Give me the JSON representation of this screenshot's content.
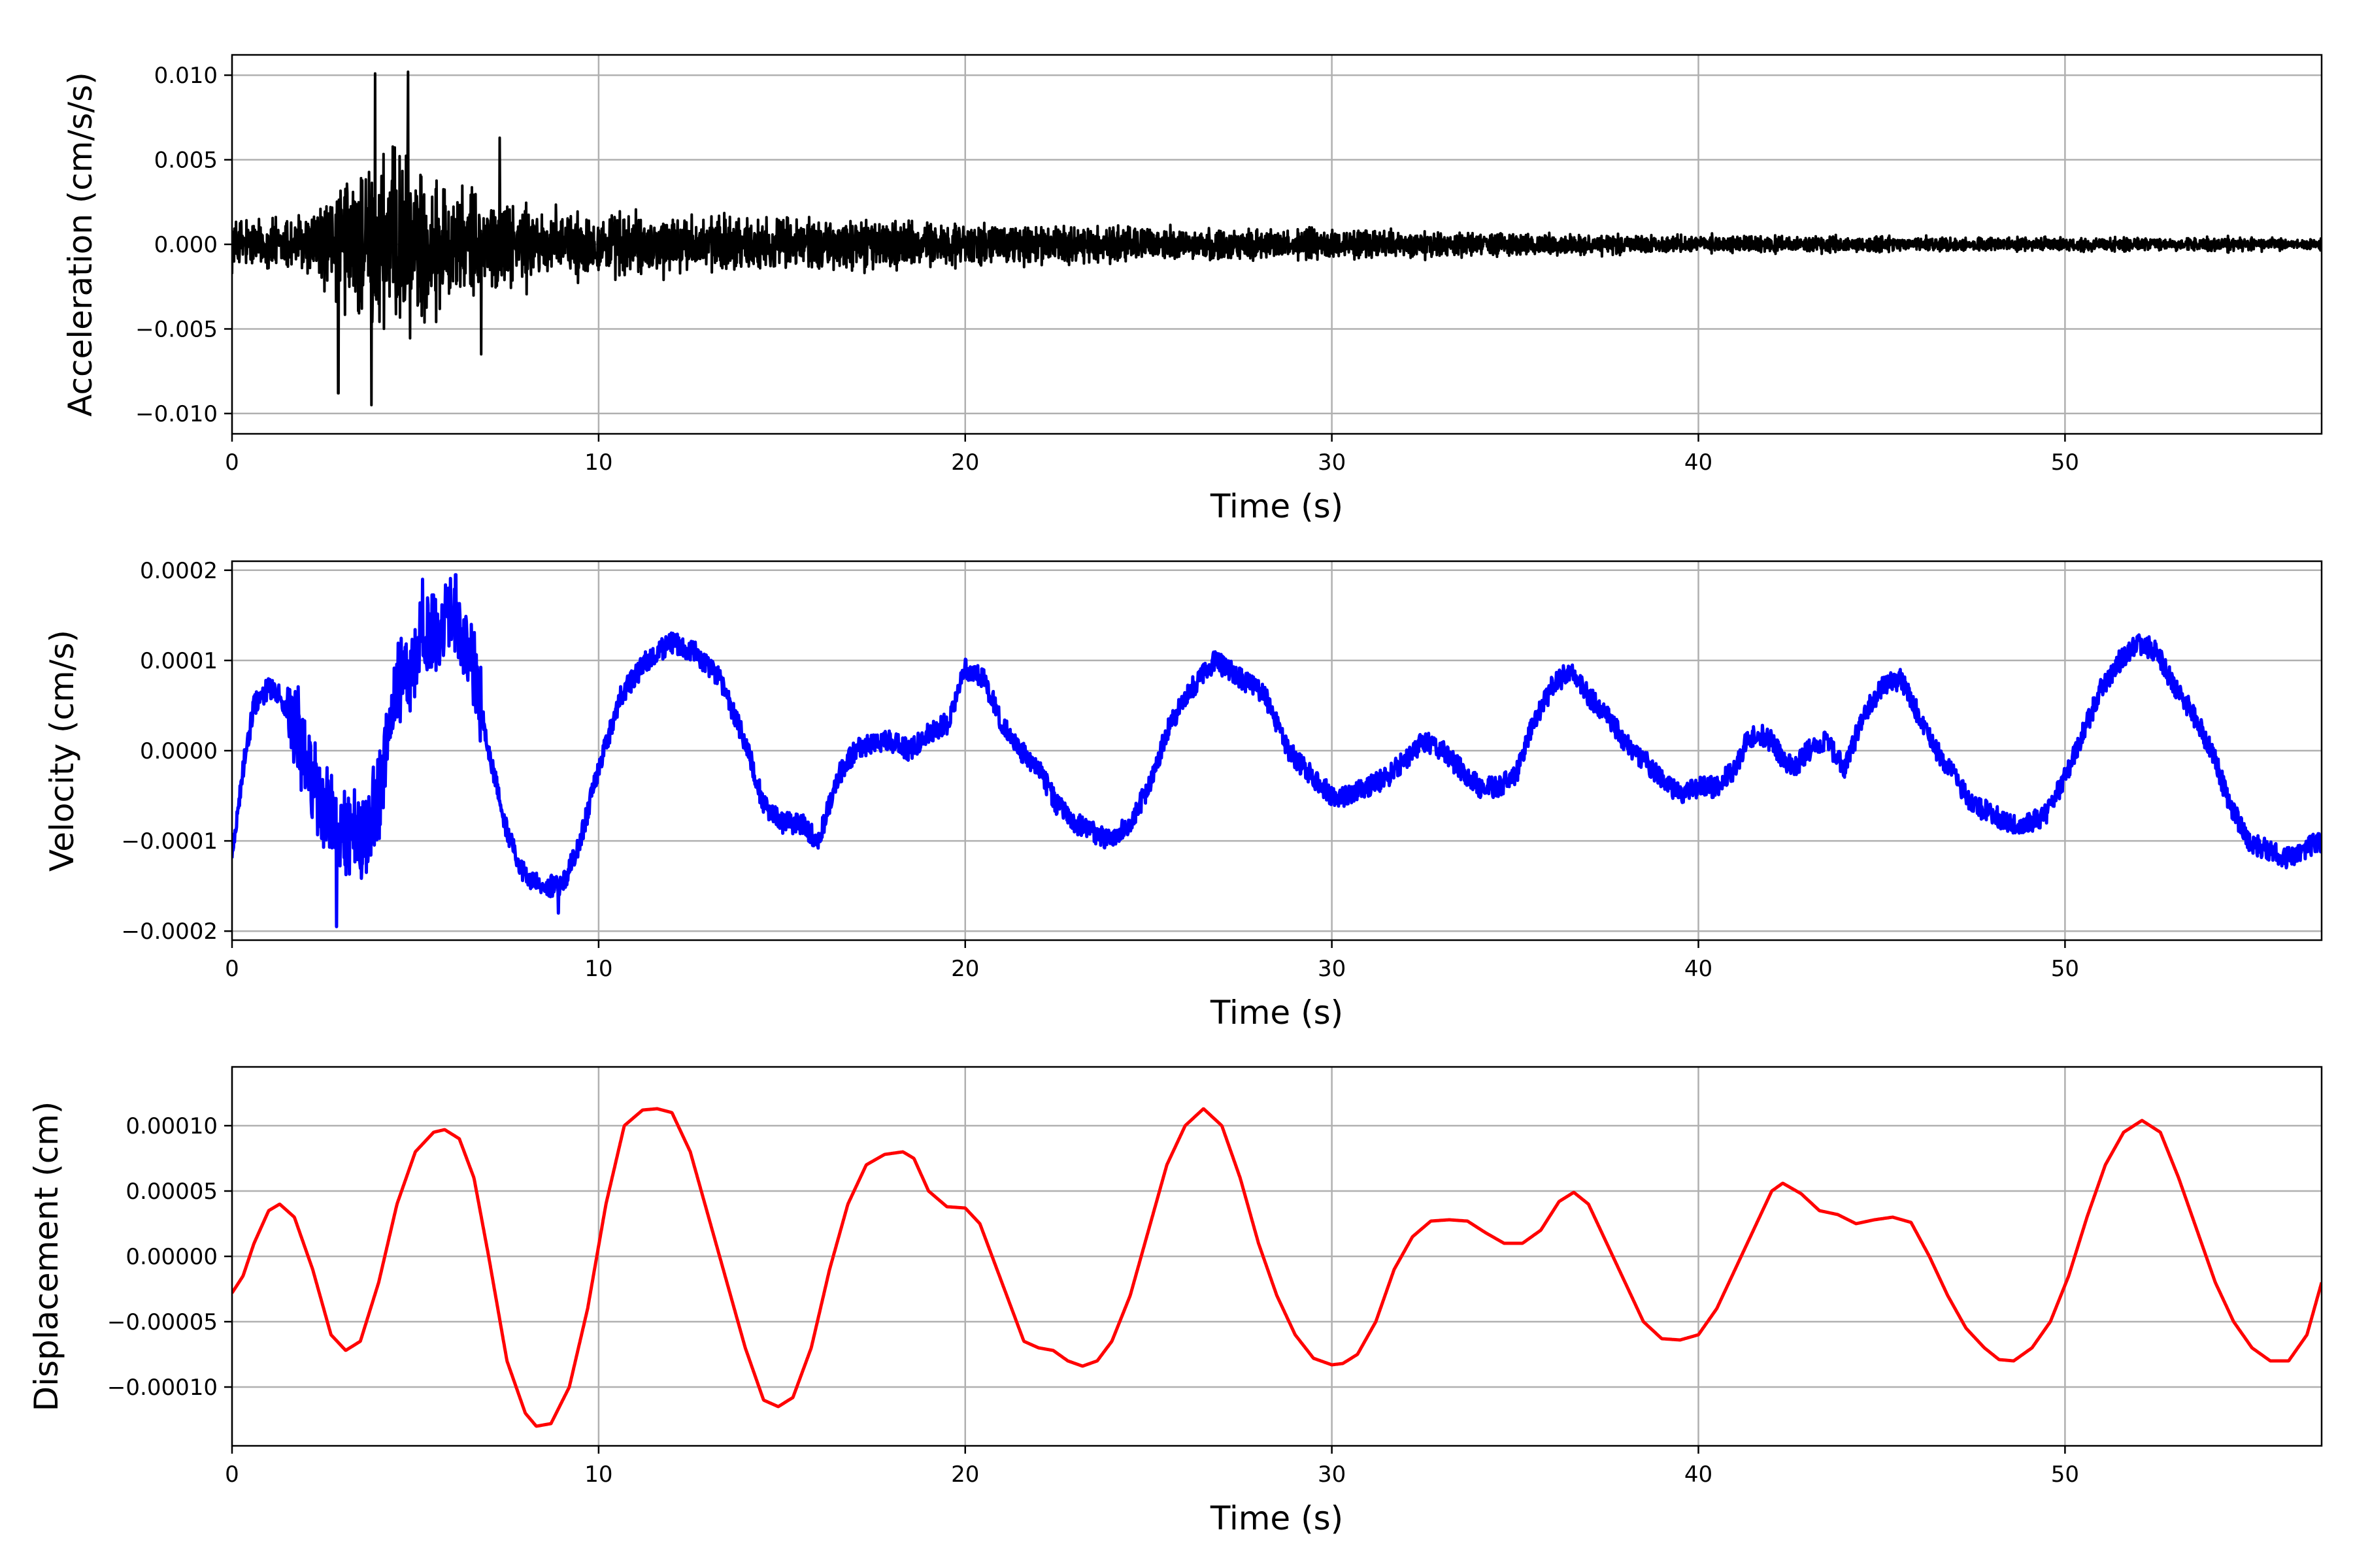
{
  "colors": {
    "grid": "#b0b0b0",
    "axes": "#000000",
    "background": "#ffffff"
  },
  "chart_data": [
    {
      "type": "line",
      "title": "",
      "xlabel": "Time (s)",
      "ylabel": "Acceleration (cm/s/s)",
      "xlim": [
        0,
        57
      ],
      "ylim": [
        -0.0112,
        0.0112
      ],
      "xticks": [
        0,
        10,
        20,
        30,
        40,
        50
      ],
      "xtick_labels": [
        "0",
        "10",
        "20",
        "30",
        "40",
        "50"
      ],
      "yticks": [
        -0.01,
        -0.005,
        0.0,
        0.005,
        0.01
      ],
      "ytick_labels": [
        "−0.010",
        "−0.005",
        "0.000",
        "0.005",
        "0.010"
      ],
      "grid": true,
      "series": [
        {
          "color": "#000000",
          "style": "noise",
          "envelope_x": [
            0,
            0.5,
            1.0,
            2.0,
            2.8,
            3.3,
            3.8,
            4.3,
            4.8,
            5.3,
            6.0,
            7.0,
            8.0,
            9.0,
            10.0,
            12.0,
            14.0,
            16.0,
            18.0,
            20.0,
            23.0,
            26.0,
            29.0,
            32.0,
            35.0,
            38.0,
            40.0,
            43.0,
            46.0,
            50.0,
            53.0,
            57.0
          ],
          "envelope": [
            0.003,
            0.0028,
            0.0027,
            0.0032,
            0.0055,
            0.0085,
            0.0095,
            0.0098,
            0.0092,
            0.0072,
            0.0058,
            0.0048,
            0.0045,
            0.0038,
            0.0035,
            0.0034,
            0.003,
            0.0028,
            0.0026,
            0.0023,
            0.002,
            0.0018,
            0.0016,
            0.0014,
            0.0012,
            0.001,
            0.0009,
            0.00085,
            0.0008,
            0.00072,
            0.0007,
            0.0007
          ],
          "peaks": [
            [
              3.9,
              0.0101
            ],
            [
              4.8,
              0.0102
            ],
            [
              3.8,
              -0.0095
            ],
            [
              2.9,
              -0.0088
            ],
            [
              7.3,
              0.0063
            ],
            [
              6.8,
              -0.0065
            ]
          ]
        }
      ]
    },
    {
      "type": "line",
      "title": "",
      "xlabel": "Time (s)",
      "ylabel": "Velocity (cm/s)",
      "xlim": [
        0,
        57
      ],
      "ylim": [
        -0.00021,
        0.00021
      ],
      "xticks": [
        0,
        10,
        20,
        30,
        40,
        50
      ],
      "xtick_labels": [
        "0",
        "10",
        "20",
        "30",
        "40",
        "50"
      ],
      "yticks": [
        -0.0002,
        -0.0001,
        0.0,
        0.0001,
        0.0002
      ],
      "ytick_labels": [
        "−0.0002",
        "−0.0001",
        "0.0000",
        "0.0001",
        "0.0002"
      ],
      "grid": true,
      "series": [
        {
          "color": "#0000ff",
          "style": "line",
          "x": [
            0,
            0.3,
            0.6,
            1.0,
            1.3,
            1.8,
            2.3,
            2.9,
            3.5,
            4.0,
            4.5,
            5.0,
            5.5,
            6.0,
            6.5,
            7.0,
            7.5,
            8.0,
            8.5,
            9.0,
            9.5,
            10.0,
            10.6,
            11.3,
            12.0,
            12.6,
            13.3,
            14.0,
            14.5,
            15.0,
            15.5,
            16.0,
            16.5,
            17.0,
            17.5,
            18.0,
            18.5,
            19.0,
            19.5,
            20.0,
            20.5,
            21.0,
            21.5,
            22.0,
            22.5,
            23.0,
            23.5,
            24.0,
            24.5,
            25.0,
            25.5,
            26.0,
            26.8,
            27.5,
            28.2,
            28.8,
            29.5,
            30.0,
            30.5,
            31.0,
            31.5,
            32.0,
            32.5,
            33.0,
            33.5,
            34.0,
            34.5,
            35.0,
            35.5,
            36.0,
            36.5,
            37.0,
            37.5,
            38.0,
            38.5,
            39.0,
            39.5,
            40.0,
            40.5,
            41.0,
            41.3,
            41.6,
            42.0,
            42.3,
            42.6,
            43.0,
            43.5,
            44.0,
            44.5,
            45.0,
            45.5,
            46.0,
            46.5,
            47.0,
            47.5,
            48.0,
            48.5,
            49.0,
            49.5,
            50.0,
            50.5,
            51.0,
            51.5,
            52.0,
            52.5,
            53.0,
            53.5,
            54.0,
            54.5,
            55.0,
            55.5,
            56.0,
            56.5,
            57.0
          ],
          "y": [
            -0.00012,
            -2e-05,
            5e-05,
            7e-05,
            6e-05,
            2e-05,
            -5e-05,
            -8e-05,
            -0.0001,
            -5e-05,
            7e-05,
            0.00011,
            0.00013,
            0.00015,
            0.00011,
            0.0,
            -9e-05,
            -0.00014,
            -0.00015,
            -0.00015,
            -0.0001,
            -2e-05,
            6e-05,
            0.0001,
            0.00012,
            0.00011,
            8e-05,
            1e-05,
            -6e-05,
            -8e-05,
            -8e-05,
            -0.0001,
            -3e-05,
            0.0,
            1e-05,
            1e-05,
            0.0,
            2e-05,
            3e-05,
            9e-05,
            8e-05,
            3e-05,
            0.0,
            -2e-05,
            -6e-05,
            -8e-05,
            -9e-05,
            -0.0001,
            -8e-05,
            -4e-05,
            2e-05,
            6e-05,
            0.0001,
            8e-05,
            6e-05,
            0.0,
            -3e-05,
            -5e-05,
            -5e-05,
            -4e-05,
            -3e-05,
            -1e-05,
            1e-05,
            0.0,
            -2e-05,
            -4e-05,
            -4e-05,
            -3e-05,
            3e-05,
            7e-05,
            9e-05,
            6e-05,
            4e-05,
            1e-05,
            -1e-05,
            -3e-05,
            -5e-05,
            -4e-05,
            -4e-05,
            -2e-05,
            1e-05,
            2e-05,
            1e-05,
            -1e-05,
            -2e-05,
            0.0,
            1e-05,
            -2e-05,
            4e-05,
            7e-05,
            8e-05,
            4e-05,
            0.0,
            -3e-05,
            -6e-05,
            -7e-05,
            -8e-05,
            -8e-05,
            -7e-05,
            -3e-05,
            2e-05,
            7e-05,
            0.0001,
            0.00012,
            0.00011,
            7e-05,
            4e-05,
            0.0,
            -6e-05,
            -0.0001,
            -0.00011,
            -0.00012,
            -0.00011,
            -0.0001
          ],
          "jitter": 1.2e-05,
          "noisy_window": [
            1.5,
            6.8,
            4.5e-05
          ],
          "peaks": [
            [
              2.85,
              -0.000195
            ],
            [
              6.1,
              0.000195
            ],
            [
              5.2,
              0.00019
            ],
            [
              8.9,
              -0.00018
            ]
          ]
        }
      ]
    },
    {
      "type": "line",
      "title": "",
      "xlabel": "Time (s)",
      "ylabel": "Displacement (cm)",
      "xlim": [
        0,
        57
      ],
      "ylim": [
        -0.000145,
        0.000145
      ],
      "xticks": [
        0,
        10,
        20,
        30,
        40,
        50
      ],
      "xtick_labels": [
        "0",
        "10",
        "20",
        "30",
        "40",
        "50"
      ],
      "yticks": [
        -0.0001,
        -5e-05,
        0.0,
        5e-05,
        0.0001
      ],
      "ytick_labels": [
        "−0.00010",
        "−0.00005",
        "0.00000",
        "0.00005",
        "0.00010"
      ],
      "grid": true,
      "series": [
        {
          "color": "#ff0000",
          "style": "line",
          "x": [
            0,
            0.3,
            0.6,
            1.0,
            1.3,
            1.7,
            2.2,
            2.7,
            3.1,
            3.5,
            4.0,
            4.5,
            5.0,
            5.5,
            5.8,
            6.2,
            6.6,
            7.0,
            7.5,
            8.0,
            8.3,
            8.7,
            9.2,
            9.7,
            10.2,
            10.7,
            11.2,
            11.6,
            12.0,
            12.5,
            13.0,
            13.5,
            14.0,
            14.5,
            14.9,
            15.3,
            15.8,
            16.3,
            16.8,
            17.3,
            17.8,
            18.3,
            18.6,
            19.0,
            19.5,
            20.0,
            20.4,
            20.8,
            21.2,
            21.6,
            22.0,
            22.4,
            22.8,
            23.2,
            23.6,
            24.0,
            24.5,
            25.0,
            25.5,
            26.0,
            26.5,
            27.0,
            27.5,
            28.0,
            28.5,
            29.0,
            29.5,
            30.0,
            30.3,
            30.7,
            31.2,
            31.7,
            32.2,
            32.7,
            33.2,
            33.7,
            34.2,
            34.7,
            35.2,
            35.7,
            36.2,
            36.6,
            37.0,
            37.5,
            38.0,
            38.5,
            39.0,
            39.5,
            40.0,
            40.5,
            41.0,
            41.5,
            42.0,
            42.3,
            42.8,
            43.3,
            43.8,
            44.3,
            44.8,
            45.3,
            45.8,
            46.3,
            46.8,
            47.3,
            47.8,
            48.2,
            48.6,
            49.1,
            49.6,
            50.1,
            50.6,
            51.1,
            51.6,
            52.1,
            52.6,
            53.1,
            53.6,
            54.1,
            54.6,
            55.1,
            55.6,
            56.1,
            56.6,
            57.0
          ],
          "y": [
            -2.8e-05,
            -1.5e-05,
            1e-05,
            3.5e-05,
            4e-05,
            3e-05,
            -1e-05,
            -6e-05,
            -7.2e-05,
            -6.5e-05,
            -2e-05,
            4e-05,
            8e-05,
            9.5e-05,
            9.7e-05,
            9e-05,
            6e-05,
            0.0,
            -8e-05,
            -0.00012,
            -0.00013,
            -0.000128,
            -0.0001,
            -4e-05,
            4e-05,
            0.0001,
            0.000112,
            0.000113,
            0.00011,
            8e-05,
            3e-05,
            -2e-05,
            -7e-05,
            -0.00011,
            -0.000115,
            -0.000108,
            -7e-05,
            -1e-05,
            4e-05,
            7e-05,
            7.8e-05,
            8e-05,
            7.5e-05,
            5e-05,
            3.8e-05,
            3.7e-05,
            2.5e-05,
            -5e-06,
            -3.5e-05,
            -6.5e-05,
            -7e-05,
            -7.2e-05,
            -8e-05,
            -8.4e-05,
            -8e-05,
            -6.5e-05,
            -3e-05,
            2e-05,
            7e-05,
            0.0001,
            0.000113,
            0.0001,
            6e-05,
            1e-05,
            -3e-05,
            -6e-05,
            -7.8e-05,
            -8.3e-05,
            -8.2e-05,
            -7.5e-05,
            -5e-05,
            -1e-05,
            1.5e-05,
            2.7e-05,
            2.8e-05,
            2.7e-05,
            1.8e-05,
            1e-05,
            1e-05,
            2e-05,
            4.2e-05,
            4.9e-05,
            4e-05,
            1e-05,
            -2e-05,
            -5e-05,
            -6.3e-05,
            -6.4e-05,
            -6e-05,
            -4e-05,
            -1e-05,
            2e-05,
            5e-05,
            5.6e-05,
            4.8e-05,
            3.5e-05,
            3.2e-05,
            2.5e-05,
            2.8e-05,
            3e-05,
            2.6e-05,
            0.0,
            -3e-05,
            -5.5e-05,
            -7e-05,
            -7.9e-05,
            -8e-05,
            -7e-05,
            -5e-05,
            -1.5e-05,
            3e-05,
            7e-05,
            9.5e-05,
            0.000104,
            9.5e-05,
            6e-05,
            2e-05,
            -2e-05,
            -5e-05,
            -7e-05,
            -8e-05,
            -8e-05,
            -6e-05,
            -2e-05
          ]
        }
      ]
    }
  ]
}
